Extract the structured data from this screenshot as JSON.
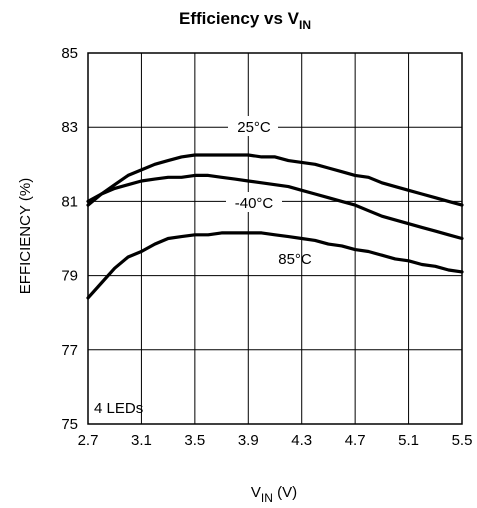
{
  "chart_data": {
    "type": "line",
    "title": {
      "main": "Efficiency vs V",
      "sub": "IN"
    },
    "xlabel": {
      "main": "V",
      "sub": "IN",
      "suffix": " (V)"
    },
    "ylabel": "EFFICIENCY (%)",
    "xlim": [
      2.7,
      5.5
    ],
    "ylim": [
      75,
      85
    ],
    "x_ticks": [
      "2.7",
      "3.1",
      "3.5",
      "3.9",
      "4.3",
      "4.7",
      "5.1",
      "5.5"
    ],
    "y_ticks": [
      "75",
      "77",
      "79",
      "81",
      "83",
      "85"
    ],
    "grid": true,
    "annotation": "4 LEDs",
    "series": [
      {
        "name": "25°C",
        "x": [
          2.7,
          2.8,
          2.9,
          3.0,
          3.1,
          3.2,
          3.3,
          3.4,
          3.5,
          3.6,
          3.7,
          3.8,
          3.9,
          4.0,
          4.1,
          4.2,
          4.3,
          4.4,
          4.5,
          4.6,
          4.7,
          4.8,
          4.9,
          5.0,
          5.1,
          5.2,
          5.3,
          5.4,
          5.5
        ],
        "y": [
          80.9,
          81.2,
          81.45,
          81.7,
          81.85,
          82.0,
          82.1,
          82.2,
          82.25,
          82.25,
          82.25,
          82.25,
          82.25,
          82.2,
          82.2,
          82.1,
          82.05,
          82.0,
          81.9,
          81.8,
          81.7,
          81.65,
          81.5,
          81.4,
          81.3,
          81.2,
          81.1,
          81.0,
          80.9
        ]
      },
      {
        "name": "-40°C",
        "x": [
          2.7,
          2.8,
          2.9,
          3.0,
          3.1,
          3.2,
          3.3,
          3.4,
          3.5,
          3.6,
          3.7,
          3.8,
          3.9,
          4.0,
          4.1,
          4.2,
          4.3,
          4.4,
          4.5,
          4.6,
          4.7,
          4.8,
          4.9,
          5.0,
          5.1,
          5.2,
          5.3,
          5.4,
          5.5
        ],
        "y": [
          81.0,
          81.2,
          81.35,
          81.45,
          81.55,
          81.6,
          81.65,
          81.65,
          81.7,
          81.7,
          81.65,
          81.6,
          81.55,
          81.5,
          81.45,
          81.4,
          81.3,
          81.2,
          81.1,
          81.0,
          80.9,
          80.75,
          80.6,
          80.5,
          80.4,
          80.3,
          80.2,
          80.1,
          80.0
        ]
      },
      {
        "name": "85°C",
        "x": [
          2.7,
          2.8,
          2.9,
          3.0,
          3.1,
          3.2,
          3.3,
          3.4,
          3.5,
          3.6,
          3.7,
          3.8,
          3.9,
          4.0,
          4.1,
          4.2,
          4.3,
          4.4,
          4.5,
          4.6,
          4.7,
          4.8,
          4.9,
          5.0,
          5.1,
          5.2,
          5.3,
          5.4,
          5.5
        ],
        "y": [
          78.4,
          78.8,
          79.2,
          79.5,
          79.65,
          79.85,
          80.0,
          80.05,
          80.1,
          80.1,
          80.15,
          80.15,
          80.15,
          80.15,
          80.1,
          80.05,
          80.0,
          79.95,
          79.85,
          79.8,
          79.7,
          79.65,
          79.55,
          79.45,
          79.4,
          79.3,
          79.25,
          79.15,
          79.1
        ]
      }
    ]
  },
  "colors": {
    "line": "#000000",
    "grid": "#000000",
    "background": "#ffffff"
  }
}
